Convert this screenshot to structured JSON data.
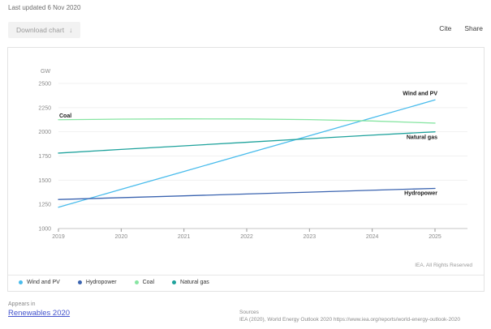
{
  "page": {
    "last_updated": "Last updated 6 Nov 2020",
    "download_button_label": "Download chart",
    "download_arrow": "↓",
    "cite_label": "Cite",
    "share_label": "Share",
    "rights_text": "IEA. All Rights Reserved",
    "appears_in_label": "Appears in",
    "appears_in_link": "Renewables 2020",
    "sources_label": "Sources",
    "sources_text": "IEA (2020), World Energy Outlook 2020 https://www.iea.org/reports/world-energy-outlook-2020"
  },
  "chart_data": {
    "type": "line",
    "unit_label": "GW",
    "x": [
      2019,
      2020,
      2021,
      2022,
      2023,
      2024,
      2025
    ],
    "series": [
      {
        "name": "Wind and PV",
        "color": "#49bcec",
        "values": [
          1220,
          1405,
          1590,
          1775,
          1960,
          2145,
          2330
        ],
        "label_side": "right",
        "label_dy": -6
      },
      {
        "name": "Hydropower",
        "color": "#3b64b0",
        "values": [
          1300,
          1319,
          1338,
          1357,
          1376,
          1396,
          1415
        ],
        "label_side": "right",
        "label_dy": 8
      },
      {
        "name": "Coal",
        "color": "#87e5a2",
        "values": [
          2125,
          2131,
          2134,
          2133,
          2126,
          2112,
          2090
        ],
        "label_side": "left",
        "label_dy": -3
      },
      {
        "name": "Natural gas",
        "color": "#1ea29c",
        "values": [
          1780,
          1818,
          1855,
          1892,
          1929,
          1966,
          2000
        ],
        "label_side": "right",
        "label_dy": 9
      }
    ],
    "ylim": [
      1000,
      2500
    ],
    "ytick_step": 250,
    "grid": true,
    "legend_position": "bottom",
    "axis_color": "#c4c4c4",
    "grid_color": "#f1f1f1",
    "tick_label_color": "#8a8a8a",
    "series_label_color": "#1a1a1a"
  }
}
